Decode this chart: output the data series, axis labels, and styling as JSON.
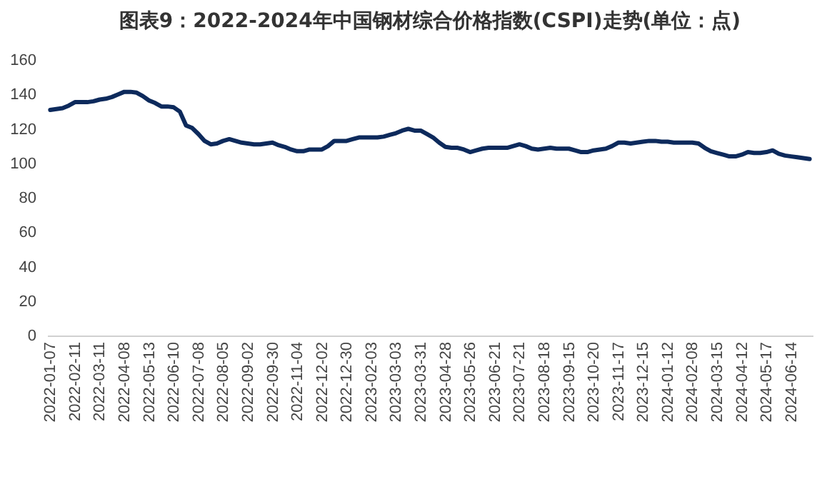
{
  "chart_data": {
    "type": "line",
    "title": "图表9：2022-2024年中国钢材综合价格指数(CSPI)走势(单位：点)",
    "categories": [
      "2022-01-07",
      null,
      null,
      null,
      "2022-02-11",
      null,
      null,
      null,
      "2022-03-11",
      null,
      null,
      null,
      "2022-04-08",
      null,
      null,
      null,
      "2022-05-13",
      null,
      null,
      null,
      "2022-06-10",
      null,
      null,
      null,
      "2022-07-08",
      null,
      null,
      null,
      "2022-08-05",
      null,
      null,
      null,
      "2022-09-02",
      null,
      null,
      null,
      "2022-09-30",
      null,
      null,
      null,
      "2022-11-04",
      null,
      null,
      null,
      "2022-12-02",
      null,
      null,
      null,
      "2022-12-30",
      null,
      null,
      null,
      "2023-02-03",
      null,
      null,
      null,
      "2023-03-03",
      null,
      null,
      null,
      "2023-03-31",
      null,
      null,
      null,
      "2023-04-28",
      null,
      null,
      null,
      "2023-05-26",
      null,
      null,
      null,
      "2023-06-21",
      null,
      null,
      null,
      "2023-07-21",
      null,
      null,
      null,
      "2023-08-18",
      null,
      null,
      null,
      "2023-09-15",
      null,
      null,
      null,
      "2023-10-20",
      null,
      null,
      null,
      "2023-11-17",
      null,
      null,
      null,
      "2023-12-15",
      null,
      null,
      null,
      "2024-01-12",
      null,
      null,
      null,
      "2024-02-08",
      null,
      null,
      null,
      "2024-03-15",
      null,
      null,
      null,
      "2024-04-12",
      null,
      null,
      null,
      "2024-05-17",
      null,
      null,
      null,
      "2024-06-14",
      null,
      null,
      null
    ],
    "values": [
      131,
      131.5,
      132,
      133.5,
      135.5,
      135.5,
      135.5,
      136,
      137,
      137.5,
      138.5,
      140,
      141.5,
      141.5,
      141,
      139,
      136.5,
      135,
      133,
      133,
      132.5,
      130,
      122,
      120.5,
      117,
      113,
      111,
      111.5,
      113,
      114,
      113,
      112,
      111.5,
      111,
      111,
      111.5,
      112,
      110.5,
      109.5,
      108,
      107,
      107,
      108,
      108,
      108,
      110,
      113,
      113,
      113,
      114,
      115,
      115,
      115,
      115,
      115.5,
      116.5,
      117.5,
      119,
      120,
      119,
      119,
      117,
      115,
      112,
      109.5,
      109,
      109,
      108,
      106.5,
      107.5,
      108.5,
      109,
      109,
      109,
      109,
      110,
      111,
      110,
      108.5,
      108,
      108.5,
      109,
      108.5,
      108.5,
      108.5,
      107.5,
      106.5,
      106.5,
      107.5,
      108,
      108.5,
      110,
      112,
      112,
      111.5,
      112,
      112.5,
      113,
      113,
      112.5,
      112.5,
      112,
      112,
      112,
      112,
      111.5,
      109,
      107,
      106,
      105,
      104,
      104,
      105,
      106.5,
      106,
      106,
      106.5,
      107.5,
      105.5,
      104.5,
      104,
      103.5,
      103,
      102.5
    ],
    "color": "#0d2a5c",
    "ylim": [
      0,
      160
    ],
    "yticks": [
      0,
      20,
      40,
      60,
      80,
      100,
      120,
      140,
      160
    ]
  }
}
